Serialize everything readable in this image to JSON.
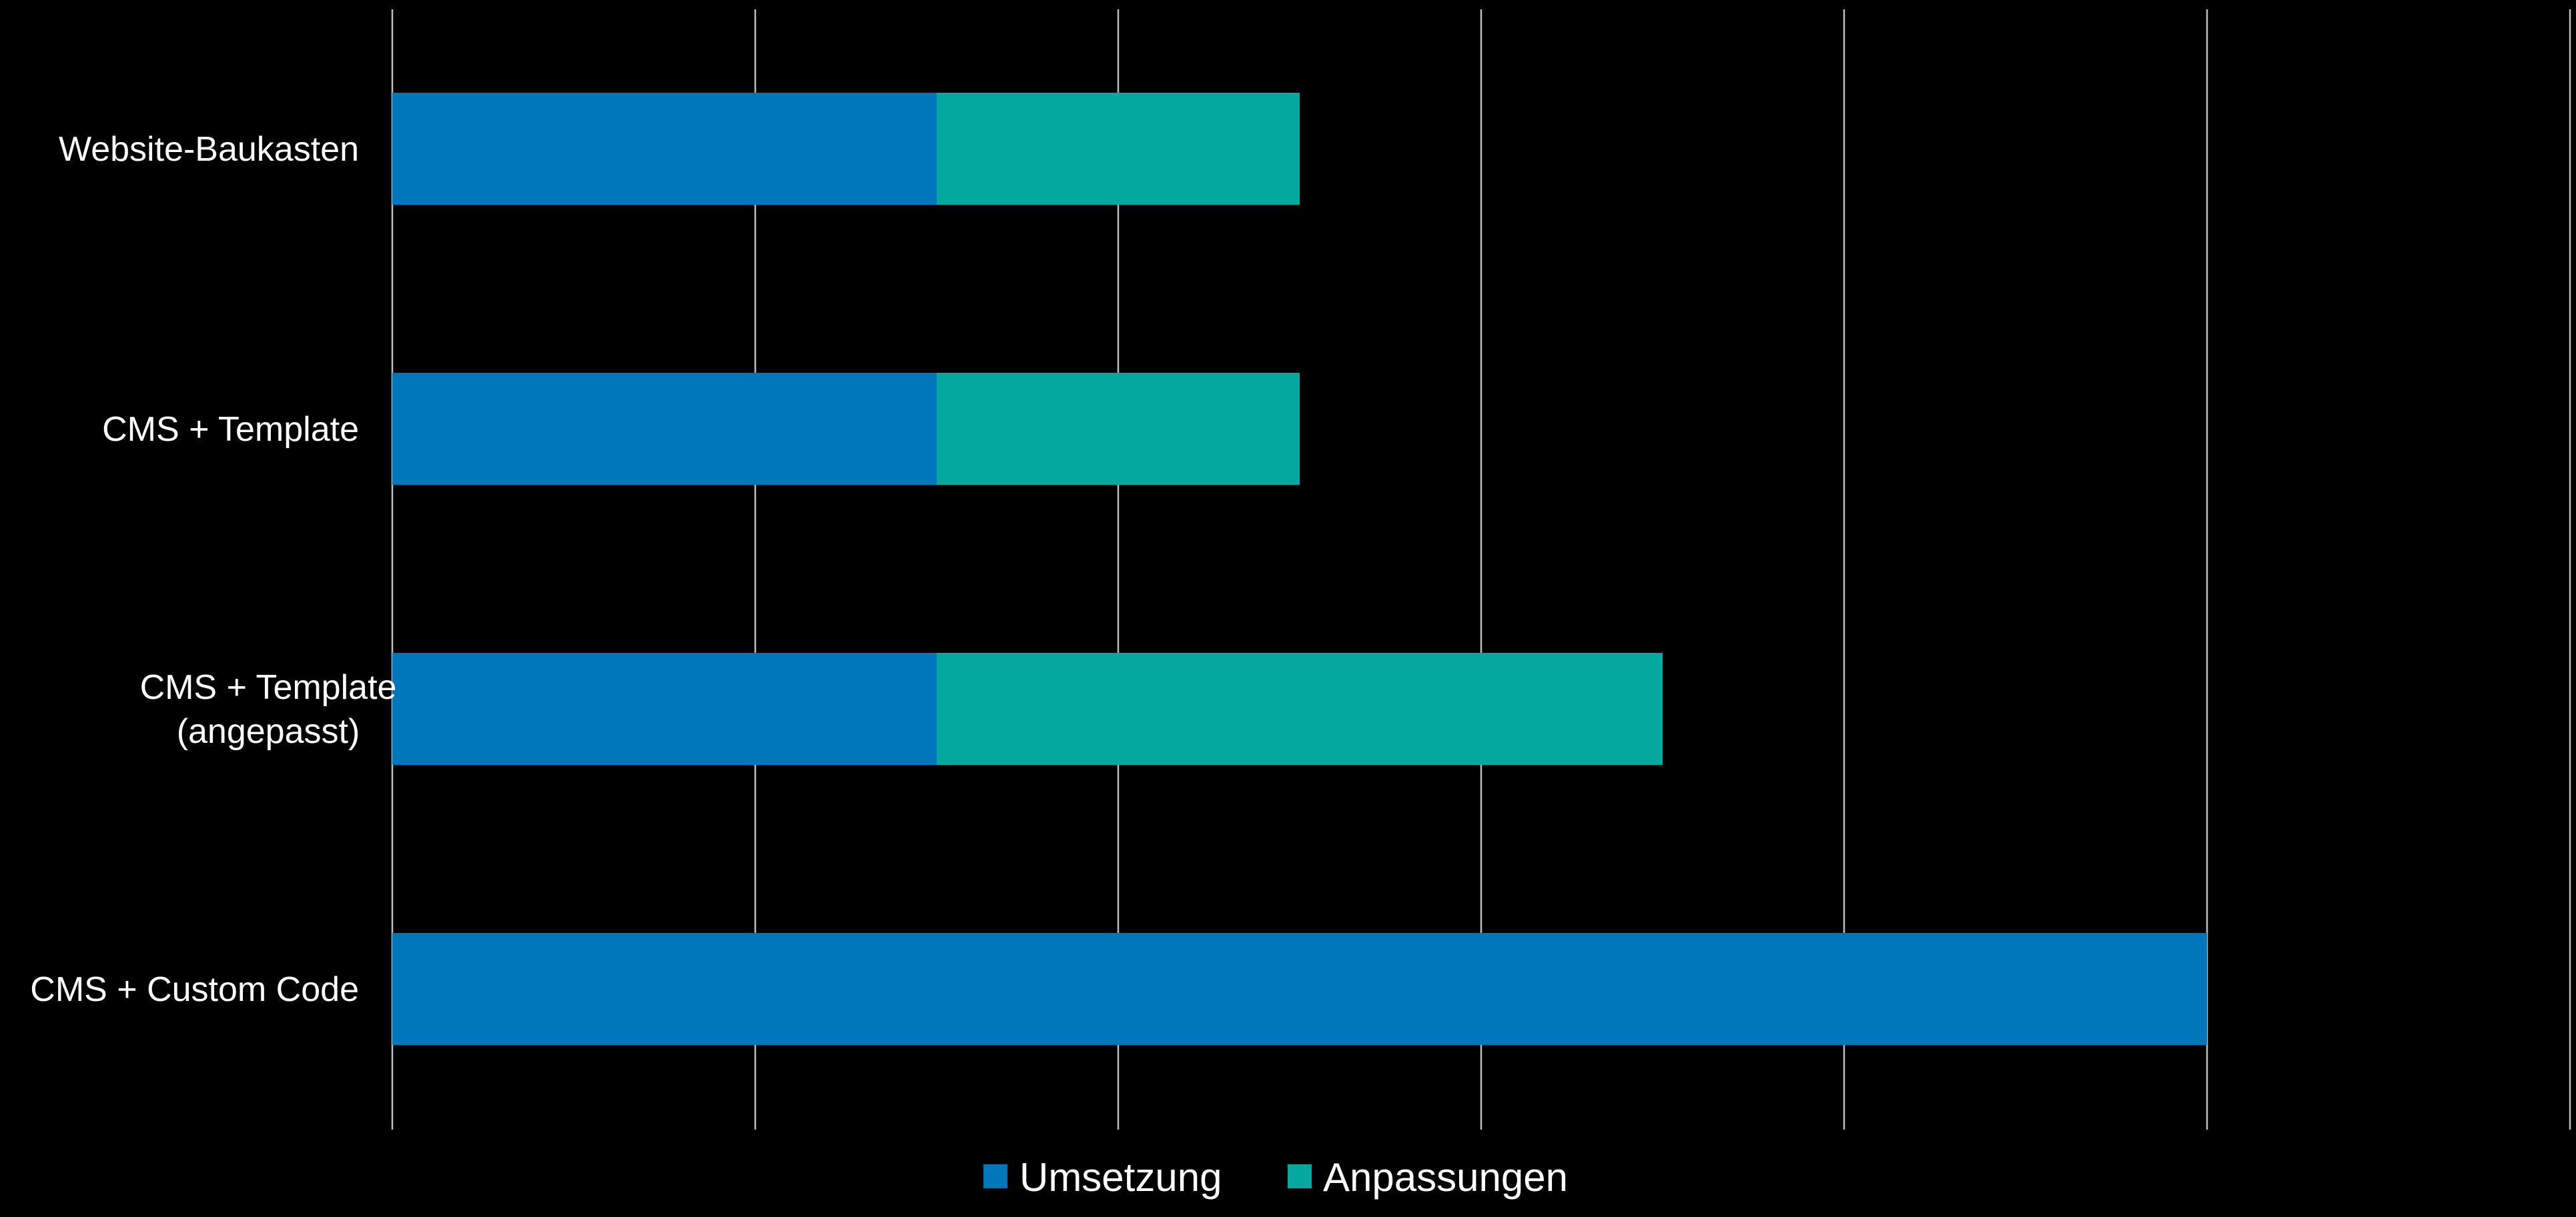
{
  "chart_data": {
    "type": "bar",
    "orientation": "horizontal",
    "stacked": true,
    "title": "",
    "xlabel": "",
    "ylabel": "",
    "categories": [
      [
        "Website-Baukasten"
      ],
      [
        "CMS + Template"
      ],
      [
        "CMS + Template",
        "(angepasst)"
      ],
      [
        "CMS + Custom Code"
      ]
    ],
    "series": [
      {
        "name": "Umsetzung",
        "color": "#0077BB",
        "values": [
          1.5,
          1.5,
          1.5,
          5
        ]
      },
      {
        "name": "Anpassungen",
        "color": "#05A89F",
        "values": [
          1,
          1,
          2,
          0
        ]
      }
    ],
    "xlim": [
      0,
      6
    ],
    "grid": true,
    "tick_labels_shown": false,
    "legend": {
      "position": "bottom"
    },
    "background": "#000000"
  }
}
